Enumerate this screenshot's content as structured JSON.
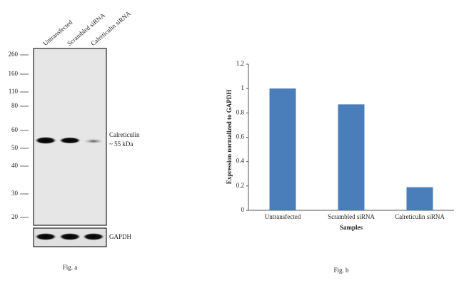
{
  "figure_a": {
    "lanes": [
      "Untransfected",
      "Scrambled siRNA",
      "Calreticulin siRNA"
    ],
    "markers": [
      "260",
      "160",
      "110",
      "80",
      "60",
      "50",
      "40",
      "30",
      "20"
    ],
    "band_label": "Calreticulin",
    "band_size": "~ 55 kDa",
    "loading_control": "GAPDH",
    "caption": "Fig. a"
  },
  "chart_data": {
    "type": "bar",
    "categories": [
      "Untransfected",
      "Scrambled siRNA",
      "Calreticulin siRNA"
    ],
    "values": [
      1,
      0.87,
      0.19
    ],
    "color": "#4a7ebb",
    "ylim": [
      0,
      1.2
    ],
    "yticks": [
      0,
      0.2,
      0.4,
      0.6,
      0.8,
      1,
      1.2
    ],
    "y_label": "Expression normalized to GAPDH",
    "x_label": "Samples",
    "caption": "Fig. b"
  }
}
